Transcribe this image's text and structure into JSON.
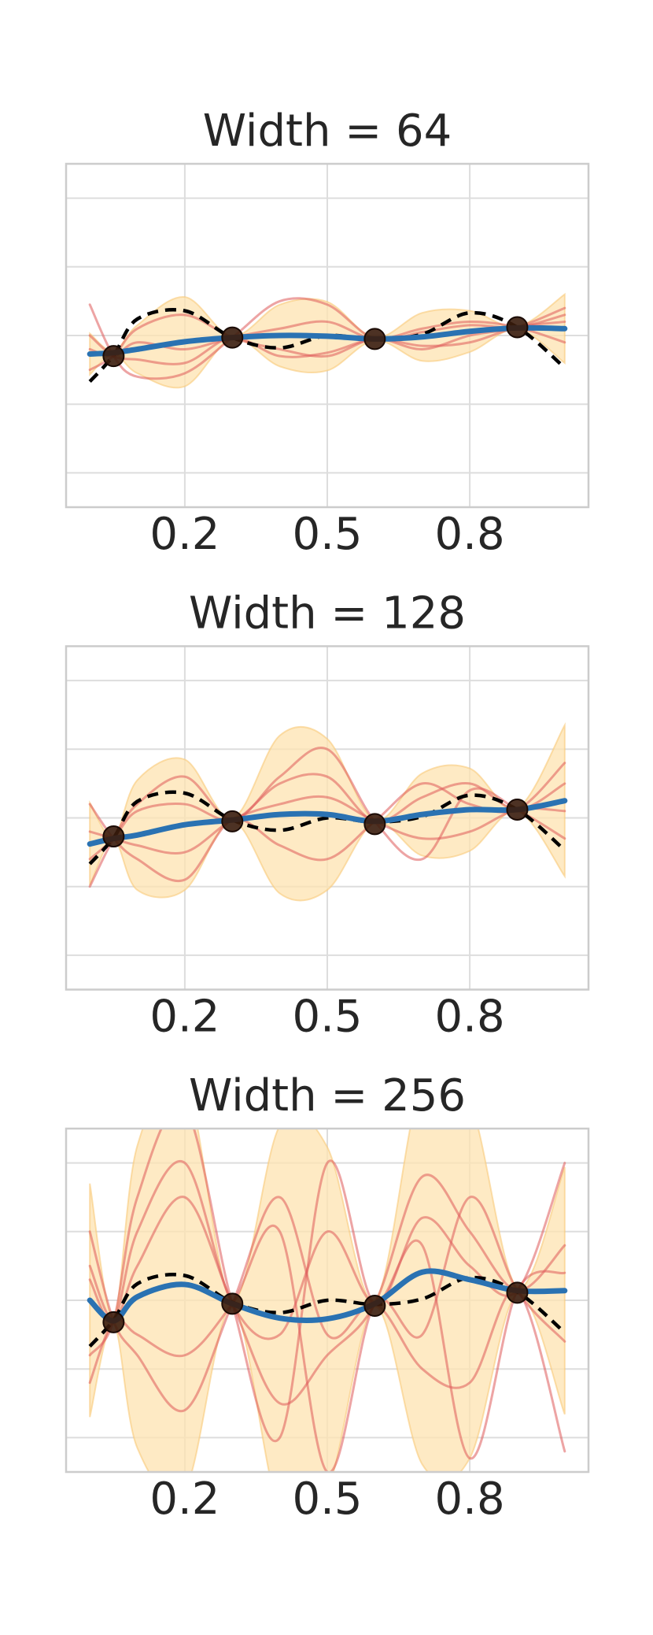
{
  "chart_data": [
    {
      "type": "line",
      "title": "Width = 64",
      "x": [
        0,
        0.05,
        0.1,
        0.2,
        0.3,
        0.4,
        0.5,
        0.6,
        0.7,
        0.8,
        0.9,
        1.0
      ],
      "xlim": [
        -0.05,
        1.05
      ],
      "ylim": [
        -2.5,
        2.5
      ],
      "xticks": [
        0.2,
        0.5,
        0.8
      ],
      "yticks": [
        -2,
        -1,
        0,
        1,
        2
      ],
      "grid": true,
      "band": {
        "color": "#fde3b0",
        "lower": [
          -0.57,
          -0.27,
          -0.55,
          -0.74,
          -0.05,
          -0.45,
          -0.51,
          -0.07,
          -0.37,
          -0.24,
          0.09,
          -0.4
        ],
        "upper": [
          0.03,
          -0.23,
          0.15,
          0.56,
          -0.01,
          0.45,
          0.49,
          -0.03,
          0.33,
          0.36,
          0.13,
          0.6
        ]
      },
      "series": [
        {
          "color": "#de5a5a",
          "opacity": 0.55,
          "linewidth": 3,
          "values": [
            0.45,
            -0.3,
            -0.6,
            -0.55,
            -0.03,
            0.5,
            0.45,
            -0.05,
            0.05,
            0.15,
            0.12,
            0.3
          ]
        },
        {
          "color": "#de5a5a",
          "opacity": 0.55,
          "linewidth": 3,
          "values": [
            -0.5,
            -0.3,
            0.1,
            0.3,
            -0.03,
            -0.2,
            -0.3,
            -0.05,
            -0.2,
            0,
            0.12,
            0.4
          ]
        },
        {
          "color": "#de5a5a",
          "opacity": 0.55,
          "linewidth": 3,
          "values": [
            -0.2,
            -0.3,
            -0.1,
            -0.2,
            -0.03,
            0.1,
            0.2,
            -0.05,
            0.1,
            0.2,
            0.12,
            -0.1
          ]
        },
        {
          "color": "#de5a5a",
          "opacity": 0.55,
          "linewidth": 3,
          "values": [
            0,
            -0.3,
            -0.35,
            -0.4,
            -0.03,
            -0.3,
            -0.25,
            -0.05,
            -0.15,
            -0.1,
            0.12,
            0.2
          ]
        },
        {
          "color": "#000000",
          "opacity": 1,
          "linewidth": 4.5,
          "dashed": true,
          "values": [
            -0.67,
            -0.29,
            0.24,
            0.36,
            -0.03,
            -0.18,
            0,
            -0.06,
            0.02,
            0.33,
            0.12,
            -0.47
          ]
        },
        {
          "color": "#2a72b2",
          "opacity": 1,
          "linewidth": 7,
          "values": [
            -0.27,
            -0.25,
            -0.2,
            -0.09,
            -0.03,
            0,
            -0.01,
            -0.05,
            -0.02,
            0.06,
            0.11,
            0.1
          ]
        }
      ],
      "points": {
        "color": "#3a1c0c",
        "x": [
          0.05,
          0.3,
          0.6,
          0.9
        ],
        "values": [
          -0.3,
          -0.03,
          -0.05,
          0.12
        ]
      }
    },
    {
      "type": "line",
      "title": "Width = 128",
      "x": [
        0,
        0.05,
        0.1,
        0.2,
        0.3,
        0.4,
        0.5,
        0.6,
        0.7,
        0.8,
        0.9,
        1.0
      ],
      "xlim": [
        -0.05,
        1.05
      ],
      "ylim": [
        -2.5,
        2.5
      ],
      "xticks": [
        0.2,
        0.5,
        0.8
      ],
      "yticks": [
        -2,
        -1,
        0,
        1,
        2
      ],
      "grid": true,
      "band": {
        "color": "#fde3b0",
        "lower": [
          -0.98,
          -0.32,
          -1.05,
          -1.05,
          -0.05,
          -1.1,
          -1.05,
          -0.07,
          -0.55,
          -0.48,
          0.1,
          -0.85
        ],
        "upper": [
          0.22,
          -0.28,
          0.55,
          0.85,
          -0.01,
          1.2,
          1.15,
          -0.03,
          0.65,
          0.72,
          0.14,
          1.35
        ]
      },
      "series": [
        {
          "color": "#de5a5a",
          "opacity": 0.55,
          "linewidth": 3,
          "values": [
            -1.0,
            -0.3,
            0.2,
            0.6,
            -0.03,
            0.6,
            1.0,
            -0.05,
            -0.6,
            0.4,
            0.12,
            -0.3
          ]
        },
        {
          "color": "#de5a5a",
          "opacity": 0.55,
          "linewidth": 3,
          "values": [
            0.2,
            -0.3,
            -0.6,
            -0.9,
            -0.03,
            -0.4,
            -0.6,
            -0.05,
            0.5,
            0.2,
            0.12,
            0.8
          ]
        },
        {
          "color": "#de5a5a",
          "opacity": 0.55,
          "linewidth": 3,
          "values": [
            -0.6,
            -0.3,
            0.1,
            0.2,
            -0.03,
            0.5,
            0.6,
            -0.05,
            0.3,
            0.5,
            0.12,
            0.5
          ]
        },
        {
          "color": "#de5a5a",
          "opacity": 0.55,
          "linewidth": 3,
          "values": [
            -0.2,
            -0.3,
            -0.4,
            -0.5,
            -0.03,
            0.2,
            0.3,
            -0.05,
            -0.3,
            -0.2,
            0.12,
            0.1
          ]
        },
        {
          "color": "#000000",
          "opacity": 1,
          "linewidth": 4.5,
          "dashed": true,
          "values": [
            -0.67,
            -0.29,
            0.24,
            0.36,
            -0.03,
            -0.18,
            0,
            -0.06,
            0.02,
            0.33,
            0.12,
            -0.47
          ]
        },
        {
          "color": "#2a72b2",
          "opacity": 1,
          "linewidth": 7,
          "values": [
            -0.38,
            -0.3,
            -0.25,
            -0.1,
            -0.03,
            0.05,
            0.05,
            -0.05,
            0.05,
            0.12,
            0.12,
            0.25
          ]
        }
      ],
      "points": {
        "color": "#3a1c0c",
        "x": [
          0.05,
          0.3,
          0.6,
          0.9
        ],
        "values": [
          -0.27,
          -0.05,
          -0.09,
          0.12
        ]
      }
    },
    {
      "type": "line",
      "title": "Width = 256",
      "x": [
        0,
        0.05,
        0.1,
        0.2,
        0.3,
        0.4,
        0.5,
        0.6,
        0.7,
        0.8,
        0.9,
        1.0
      ],
      "xlim": [
        -0.05,
        1.05
      ],
      "ylim": [
        -2.5,
        2.5
      ],
      "xticks": [
        0.2,
        0.5,
        0.8
      ],
      "yticks": [
        -2,
        -1,
        0,
        1,
        2
      ],
      "grid": true,
      "band": {
        "color": "#fde3b0",
        "lower": [
          -1.7,
          -0.35,
          -2.15,
          -2.77,
          -0.1,
          -3.06,
          -2.77,
          -0.1,
          -2.39,
          -2.3,
          0.09,
          -1.66
        ],
        "upper": [
          1.7,
          -0.25,
          2.25,
          3.23,
          0,
          2.54,
          2.23,
          0,
          3.21,
          2.9,
          0.19,
          1.94
        ]
      },
      "series": [
        {
          "color": "#de5a5a",
          "opacity": 0.55,
          "linewidth": 3,
          "values": [
            -0.8,
            -0.3,
            1.5,
            2.8,
            -0.05,
            -2.0,
            2.0,
            -0.05,
            1.2,
            0.5,
            0.14,
            2.0
          ]
        },
        {
          "color": "#de5a5a",
          "opacity": 0.55,
          "linewidth": 3,
          "values": [
            1.0,
            -0.3,
            -0.8,
            -1.6,
            -0.05,
            1.5,
            -0.5,
            -0.05,
            -1.0,
            -1.2,
            0.14,
            -2.2
          ]
        },
        {
          "color": "#de5a5a",
          "opacity": 0.55,
          "linewidth": 3,
          "values": [
            0.5,
            -0.3,
            0.5,
            1.5,
            -0.05,
            -1.5,
            -0.8,
            -0.05,
            1.8,
            1.0,
            0.14,
            0.8
          ]
        },
        {
          "color": "#de5a5a",
          "opacity": 0.55,
          "linewidth": 3,
          "values": [
            -1.2,
            -0.3,
            -0.5,
            -0.8,
            -0.05,
            1.0,
            -2.5,
            -0.05,
            -0.5,
            1.5,
            0.14,
            -0.6
          ]
        },
        {
          "color": "#de5a5a",
          "opacity": 0.55,
          "linewidth": 3,
          "values": [
            0.3,
            -0.3,
            1.0,
            2.0,
            -0.05,
            -0.5,
            1.0,
            -0.05,
            0.8,
            -2.3,
            0.14,
            0.4
          ]
        },
        {
          "color": "#000000",
          "opacity": 1,
          "linewidth": 4.5,
          "dashed": true,
          "values": [
            -0.67,
            -0.29,
            0.24,
            0.36,
            -0.03,
            -0.18,
            0,
            -0.06,
            0.02,
            0.33,
            0.12,
            -0.47
          ]
        },
        {
          "color": "#2a72b2",
          "opacity": 1,
          "linewidth": 7,
          "values": [
            0,
            -0.3,
            0.05,
            0.23,
            -0.05,
            -0.26,
            -0.27,
            -0.05,
            0.41,
            0.3,
            0.14,
            0.14
          ]
        }
      ],
      "points": {
        "color": "#3a1c0c",
        "x": [
          0.05,
          0.3,
          0.6,
          0.9
        ],
        "values": [
          -0.32,
          -0.05,
          -0.08,
          0.11
        ]
      }
    }
  ]
}
